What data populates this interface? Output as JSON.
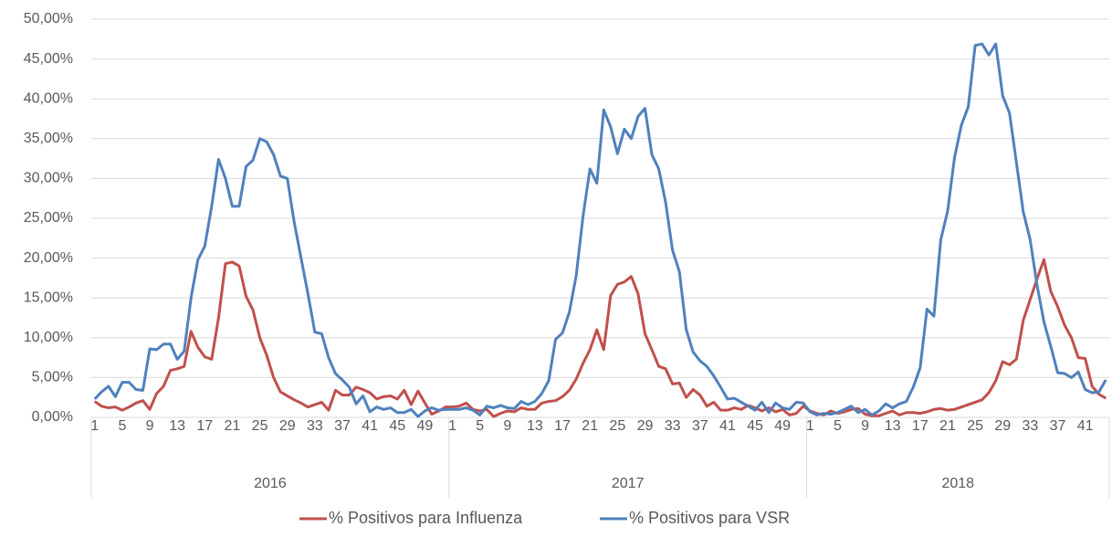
{
  "chart_data": {
    "type": "line",
    "groups": [
      {
        "label": "2016",
        "weeks": [
          1,
          null,
          null,
          null,
          5,
          null,
          null,
          null,
          9,
          null,
          null,
          null,
          13,
          null,
          null,
          null,
          17,
          null,
          null,
          null,
          21,
          null,
          null,
          null,
          25,
          null,
          null,
          null,
          29,
          null,
          null,
          null,
          33,
          null,
          null,
          null,
          37,
          null,
          null,
          null,
          41,
          null,
          null,
          null,
          45,
          null,
          null,
          null,
          49,
          null,
          null,
          null
        ]
      },
      {
        "label": "2017",
        "weeks": [
          1,
          null,
          null,
          null,
          5,
          null,
          null,
          null,
          9,
          null,
          null,
          null,
          13,
          null,
          null,
          null,
          17,
          null,
          null,
          null,
          21,
          null,
          null,
          null,
          25,
          null,
          null,
          null,
          29,
          null,
          null,
          null,
          33,
          null,
          null,
          null,
          37,
          null,
          null,
          null,
          41,
          null,
          null,
          null,
          45,
          null,
          null,
          null,
          49,
          null,
          null,
          null
        ]
      },
      {
        "label": "2018",
        "weeks": [
          1,
          null,
          null,
          null,
          5,
          null,
          null,
          null,
          9,
          null,
          null,
          null,
          13,
          null,
          null,
          null,
          17,
          null,
          null,
          null,
          21,
          null,
          null,
          null,
          25,
          null,
          null,
          null,
          29,
          null,
          null,
          null,
          33,
          null,
          null,
          null,
          37,
          null,
          null,
          null,
          41,
          null,
          null,
          null
        ]
      }
    ],
    "series": [
      {
        "name": "% Positivos para Influenza",
        "color": "#c0504d",
        "values": [
          2.0,
          1.4,
          1.2,
          1.3,
          0.9,
          1.3,
          1.8,
          2.1,
          1.0,
          3.0,
          3.9,
          5.9,
          6.1,
          6.4,
          10.8,
          8.8,
          7.6,
          7.3,
          12.5,
          19.3,
          19.5,
          19.0,
          15.2,
          13.5,
          10.0,
          7.8,
          5.0,
          3.2,
          2.7,
          2.2,
          1.8,
          1.3,
          1.6,
          1.9,
          0.9,
          3.4,
          2.8,
          2.8,
          3.8,
          3.5,
          3.1,
          2.3,
          2.6,
          2.7,
          2.3,
          3.4,
          1.6,
          3.3,
          1.8,
          0.4,
          0.8,
          1.3,
          1.3,
          1.4,
          1.8,
          1.0,
          0.8,
          1.0,
          0.1,
          0.5,
          0.8,
          0.7,
          1.2,
          1.0,
          1.0,
          1.8,
          2.0,
          2.1,
          2.6,
          3.4,
          4.8,
          6.8,
          8.5,
          11.0,
          8.5,
          15.3,
          16.7,
          17.0,
          17.7,
          15.5,
          10.5,
          8.5,
          6.4,
          6.1,
          4.2,
          4.3,
          2.5,
          3.5,
          2.8,
          1.4,
          1.9,
          0.9,
          0.9,
          1.2,
          1.0,
          1.5,
          1.2,
          0.8,
          1.2,
          0.7,
          1.0,
          0.3,
          0.5,
          1.4,
          0.8,
          0.5,
          0.3,
          0.8,
          0.5,
          0.7,
          1.0,
          1.1,
          0.4,
          0.2,
          0.2,
          0.5,
          0.8,
          0.3,
          0.6,
          0.6,
          0.5,
          0.7,
          1.0,
          1.1,
          0.9,
          1.0,
          1.3,
          1.6,
          1.9,
          2.2,
          3.1,
          4.6,
          7.0,
          6.6,
          7.3,
          12.2,
          14.8,
          17.4,
          19.8,
          15.8,
          13.9,
          11.6,
          10.0,
          7.5,
          7.4,
          3.9,
          2.9,
          2.4
        ]
      },
      {
        "name": "% Positivos para VSR",
        "color": "#4f81bd",
        "values": [
          2.3,
          3.2,
          3.9,
          2.6,
          4.4,
          4.4,
          3.5,
          3.4,
          8.6,
          8.5,
          9.2,
          9.2,
          7.3,
          8.3,
          15.0,
          19.8,
          21.5,
          26.5,
          32.4,
          30.0,
          26.5,
          26.5,
          31.5,
          32.3,
          35.0,
          34.6,
          33.0,
          30.3,
          30.0,
          24.5,
          20.0,
          15.5,
          10.7,
          10.5,
          7.5,
          5.5,
          4.7,
          3.8,
          1.7,
          2.7,
          0.7,
          1.3,
          1.0,
          1.2,
          0.6,
          0.6,
          1.0,
          0.1,
          0.8,
          1.2,
          0.9,
          1.0,
          1.0,
          1.0,
          1.2,
          0.9,
          0.3,
          1.4,
          1.2,
          1.5,
          1.2,
          1.1,
          2.0,
          1.6,
          2.0,
          3.0,
          4.6,
          9.8,
          10.6,
          13.2,
          17.8,
          25.3,
          31.2,
          29.4,
          38.6,
          36.5,
          33.1,
          36.2,
          35.0,
          37.8,
          38.8,
          33.0,
          31.2,
          27.0,
          21.0,
          18.3,
          11.0,
          8.2,
          7.1,
          6.4,
          5.2,
          3.8,
          2.3,
          2.4,
          1.9,
          1.4,
          0.9,
          1.9,
          0.6,
          1.8,
          1.2,
          1.0,
          1.9,
          1.8,
          0.7,
          0.3,
          0.5,
          0.4,
          0.6,
          1.0,
          1.4,
          0.6,
          1.0,
          0.3,
          0.8,
          1.7,
          1.2,
          1.7,
          2.0,
          3.8,
          6.2,
          13.6,
          12.7,
          22.3,
          25.9,
          32.6,
          36.7,
          39.0,
          46.7,
          46.9,
          45.5,
          46.9,
          40.4,
          38.2,
          32.0,
          25.8,
          22.3,
          16.6,
          12.0,
          8.9,
          5.6,
          5.5,
          5.0,
          5.7,
          3.5,
          3.1,
          3.2,
          4.7
        ]
      }
    ],
    "ylim": [
      0,
      50
    ],
    "yticks": [
      {
        "value": 0,
        "label": "0,00%"
      },
      {
        "value": 5,
        "label": "5,00%"
      },
      {
        "value": 10,
        "label": "10,00%"
      },
      {
        "value": 15,
        "label": "15,00%"
      },
      {
        "value": 20,
        "label": "20,00%"
      },
      {
        "value": 25,
        "label": "25,00%"
      },
      {
        "value": 30,
        "label": "30,00%"
      },
      {
        "value": 35,
        "label": "35,00%"
      },
      {
        "value": 40,
        "label": "40,00%"
      },
      {
        "value": 45,
        "label": "45,00%"
      },
      {
        "value": 50,
        "label": "50,00%"
      }
    ],
    "grid": true,
    "legend": "bottom"
  }
}
